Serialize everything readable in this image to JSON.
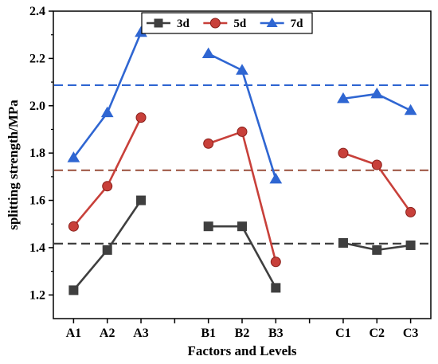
{
  "chart_data": {
    "type": "line",
    "xlabel": "Factors and Levels",
    "ylabel": "splitting strength/MPa",
    "ylim": [
      1.1,
      2.4
    ],
    "yticks": [
      "1.2",
      "1.4",
      "1.6",
      "1.8",
      "2.0",
      "2.2",
      "2.4"
    ],
    "categories": [
      "A1",
      "A2",
      "A3",
      "B1",
      "B2",
      "B3",
      "C1",
      "C2",
      "C3"
    ],
    "groups": [
      [
        "A1",
        "A2",
        "A3"
      ],
      [
        "B1",
        "B2",
        "B3"
      ],
      [
        "C1",
        "C2",
        "C3"
      ]
    ],
    "legend_position": "top-center",
    "grid": false,
    "series": [
      {
        "name": "3d",
        "marker": "square",
        "color": "#3f3f3f",
        "values": [
          1.22,
          1.39,
          1.6,
          1.49,
          1.49,
          1.23,
          1.42,
          1.39,
          1.41
        ],
        "mean_line": 1.417,
        "mean_color": "#3f3f3f"
      },
      {
        "name": "5d",
        "marker": "circle",
        "color": "#c8403a",
        "values": [
          1.49,
          1.66,
          1.95,
          1.84,
          1.89,
          1.34,
          1.8,
          1.75,
          1.55
        ],
        "mean_line": 1.727,
        "mean_color": "#a05a48"
      },
      {
        "name": "7d",
        "marker": "triangle",
        "color": "#2f66d2",
        "values": [
          1.78,
          1.97,
          2.31,
          2.22,
          2.15,
          1.69,
          2.03,
          2.05,
          1.98
        ],
        "mean_line": 2.087,
        "mean_color": "#2f66d2"
      }
    ]
  }
}
